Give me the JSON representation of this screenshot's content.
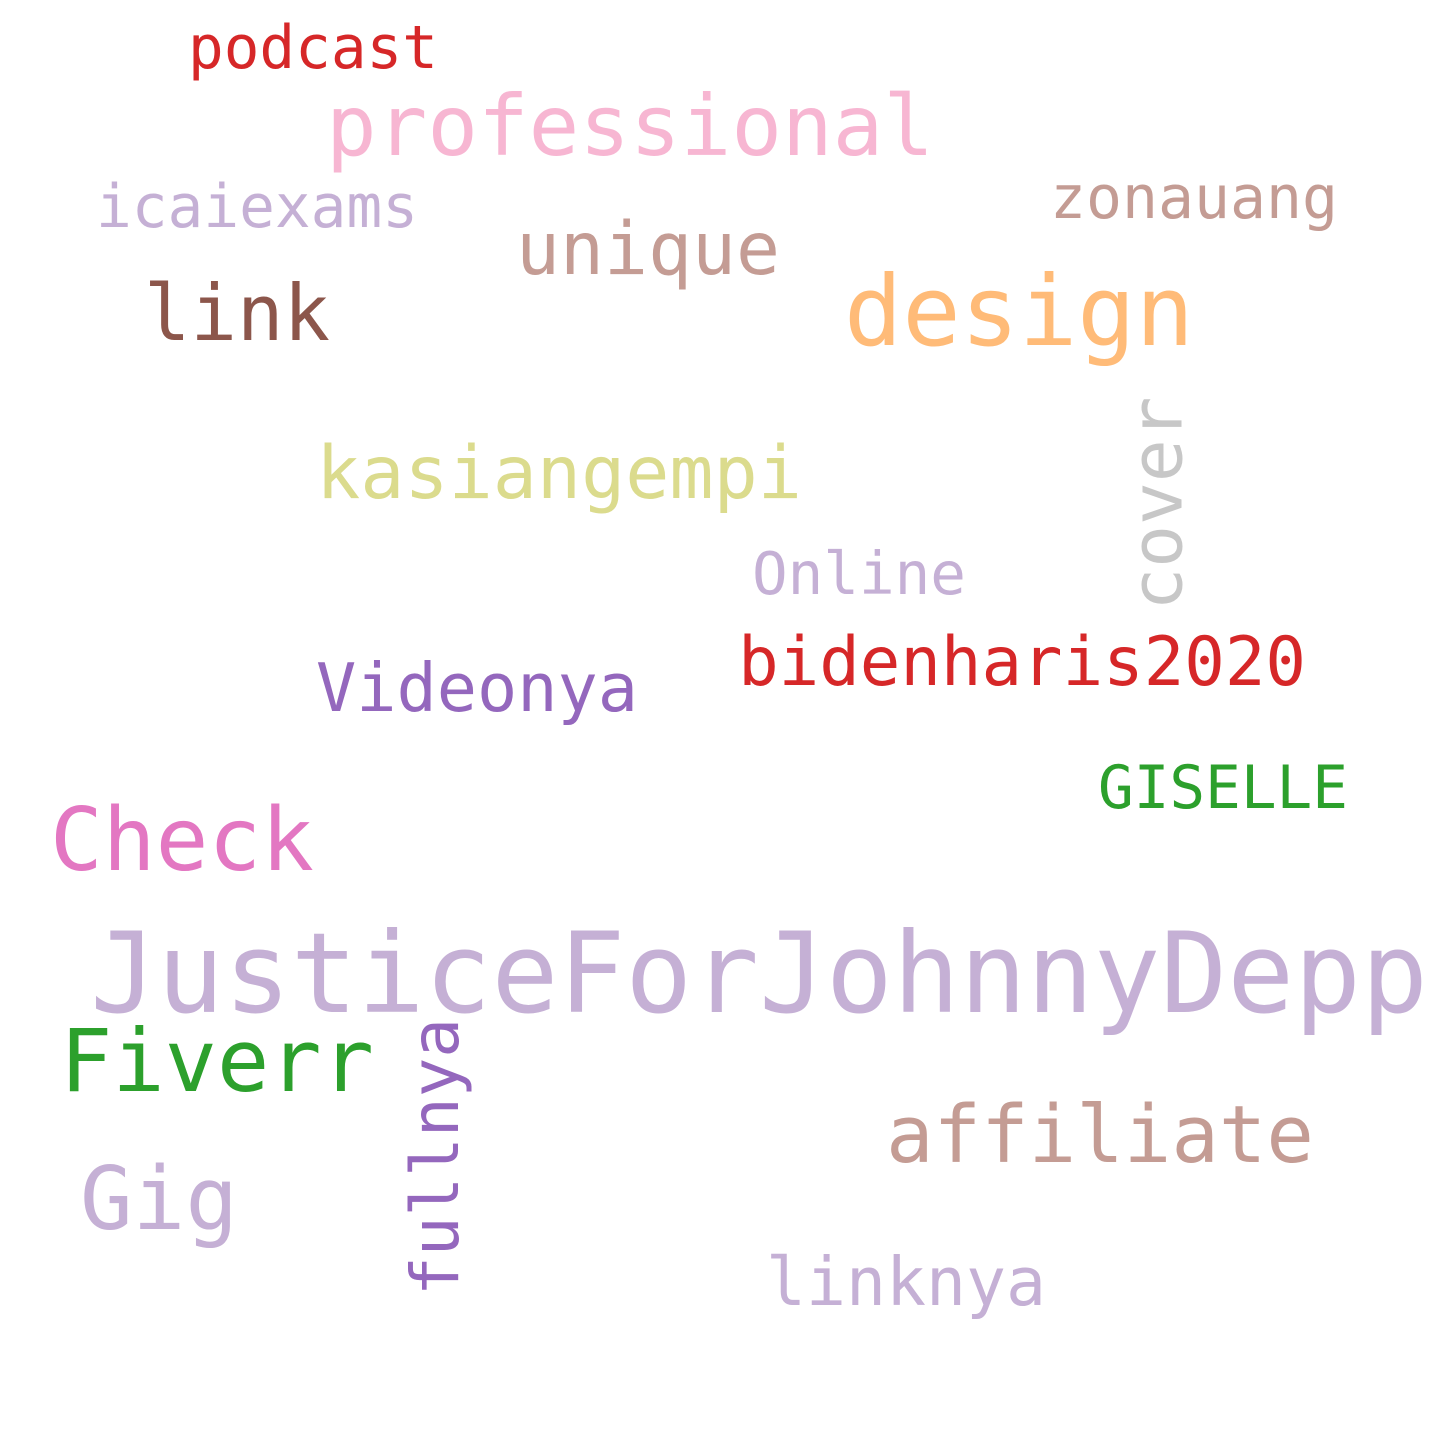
{
  "words": [
    {
      "text": "podcast",
      "color": "#d62728"
    },
    {
      "text": "professional",
      "color": "#f7b6d2"
    },
    {
      "text": "icaiexams",
      "color": "#c5b0d5"
    },
    {
      "text": "zonauang",
      "color": "#c49c94"
    },
    {
      "text": "unique",
      "color": "#c49c94"
    },
    {
      "text": "link",
      "color": "#8c564b"
    },
    {
      "text": "design",
      "color": "#ffbb78"
    },
    {
      "text": "kasiangempi",
      "color": "#dbdb8d"
    },
    {
      "text": "cover",
      "color": "#c7c7c7",
      "vertical": true
    },
    {
      "text": "Online",
      "color": "#c5b0d5"
    },
    {
      "text": "bidenharis2020",
      "color": "#d62728"
    },
    {
      "text": "Videonya",
      "color": "#9467bd"
    },
    {
      "text": "GISELLE",
      "color": "#2ca02c"
    },
    {
      "text": "Check",
      "color": "#e377c2"
    },
    {
      "text": "JusticeForJohnnyDepp",
      "color": "#c5b0d5"
    },
    {
      "text": "Fiverr",
      "color": "#2ca02c"
    },
    {
      "text": "fullnya",
      "color": "#9467bd",
      "vertical": true
    },
    {
      "text": "affiliate",
      "color": "#c49c94"
    },
    {
      "text": "Gig",
      "color": "#c5b0d5"
    },
    {
      "text": "linknya",
      "color": "#c5b0d5"
    }
  ]
}
